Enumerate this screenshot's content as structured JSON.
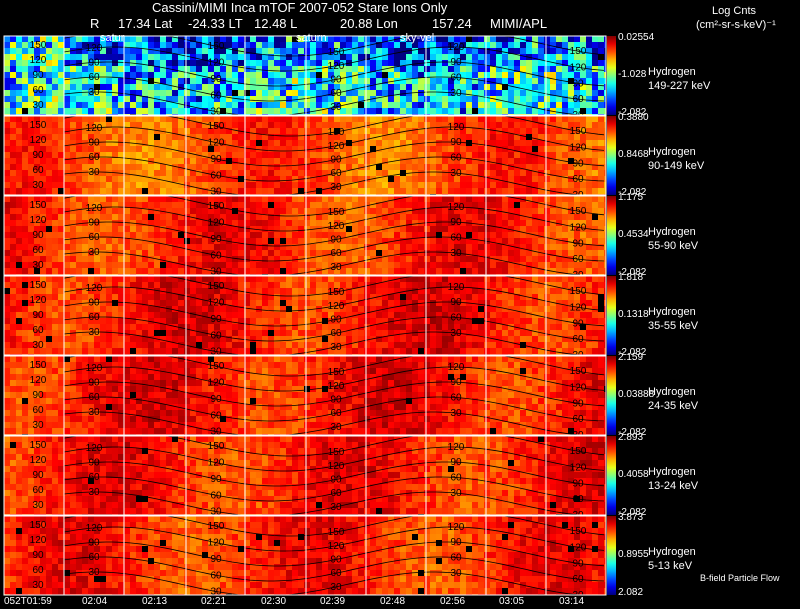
{
  "header": {
    "title": "Cassini/MIMI Inca mTOF  2007-052   Stare   Ions Only",
    "r_label": "R",
    "lat": "17.34 Lat",
    "lat_value": "-24.33 LT",
    "lt_value": "12.48 L",
    "lon": "20.88 Lon",
    "lon_value": "157.24",
    "org": "MIMI/APL",
    "overlay_labels": [
      "satur",
      "saturn",
      "sky-vel"
    ]
  },
  "colorbar_title": "Log Cnts",
  "colorbar_units": "(cm²-sr-s-keV)⁻¹",
  "footnote": "B-field Particle Flow",
  "chart_data": {
    "type": "heatmap",
    "species": "Hydrogen",
    "x_ticks": [
      "052T01:59",
      "02:04",
      "02:13",
      "02:21",
      "02:30",
      "02:39",
      "02:48",
      "02:56",
      "03:05",
      "03:14"
    ],
    "contour_labels": [
      30,
      60,
      90,
      120,
      150,
      180
    ],
    "panels": [
      {
        "species": "Hydrogen",
        "energy": "149-227 keV",
        "cmax": "0.02554",
        "cmid": "-1.028",
        "cmin": "-2.082",
        "mean_level": 0.35
      },
      {
        "species": "Hydrogen",
        "energy": "90-149 keV",
        "cmax": "0.3880",
        "cmid": "0.8468",
        "cmin": "-2.082",
        "mean_level": 0.8
      },
      {
        "species": "Hydrogen",
        "energy": "55-90 keV",
        "cmax": "1.175",
        "cmid": "0.4534",
        "cmin": "-2.082",
        "mean_level": 0.84
      },
      {
        "species": "Hydrogen",
        "energy": "35-55 keV",
        "cmax": "1.818",
        "cmid": "0.1318",
        "cmin": "-2.082",
        "mean_level": 0.86
      },
      {
        "species": "Hydrogen",
        "energy": "24-35 keV",
        "cmax": "2.159",
        "cmid": "0.03888",
        "cmin": "-2.082",
        "mean_level": 0.86
      },
      {
        "species": "Hydrogen",
        "energy": "13-24 keV",
        "cmax": "2.893",
        "cmid": "0.4058",
        "cmin": "-2.082",
        "mean_level": 0.85
      },
      {
        "species": "Hydrogen",
        "energy": "5-13 keV",
        "cmax": "3.873",
        "cmid": "0.8955",
        "cmin": "2.082",
        "mean_level": 0.84
      }
    ]
  }
}
